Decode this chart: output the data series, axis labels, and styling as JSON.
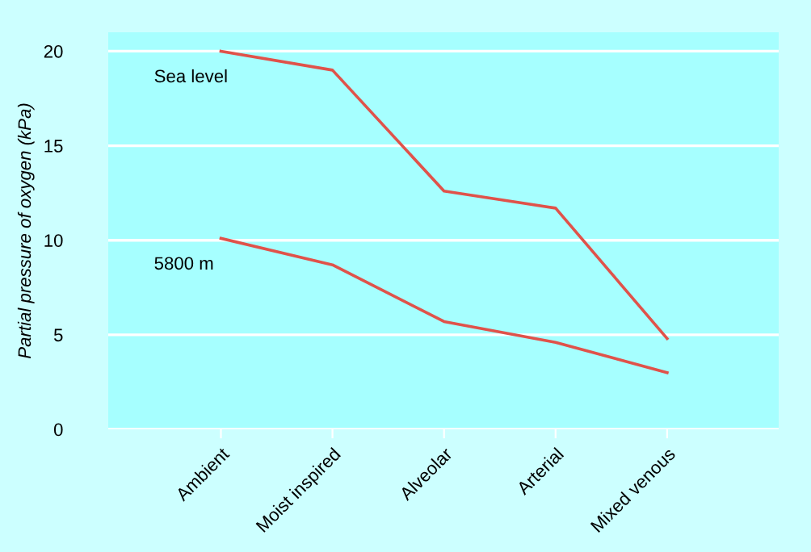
{
  "chart_data": {
    "type": "line",
    "ylabel": "Partial pressure of oxygen (kPa)",
    "categories": [
      "Ambient",
      "Moist inspired",
      "Alveolar",
      "Arterial",
      "Mixed venous"
    ],
    "series": [
      {
        "name": "Sea level",
        "color": "#e0524a",
        "values": [
          20.0,
          19.0,
          12.6,
          11.7,
          4.8
        ]
      },
      {
        "name": "5800 m",
        "color": "#e0524a",
        "values": [
          10.1,
          8.7,
          5.7,
          4.6,
          3.0
        ]
      }
    ],
    "ylim": [
      0,
      21
    ],
    "yticks": [
      0,
      5,
      10,
      15,
      20
    ],
    "grid": "y",
    "legend": false,
    "marker": "none",
    "line_style": "solid"
  }
}
